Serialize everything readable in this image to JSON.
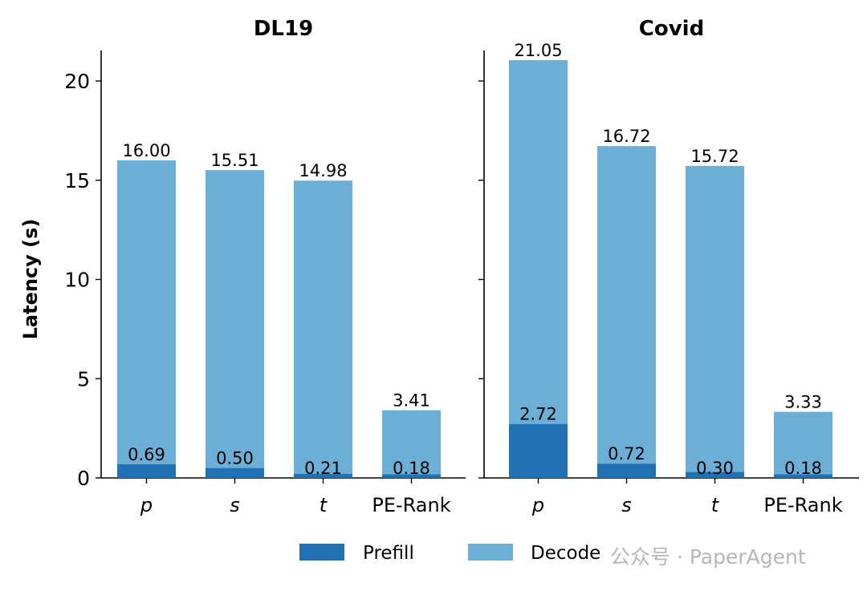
{
  "chart_data": [
    {
      "type": "bar",
      "stacked": true,
      "title": "DL19",
      "ylabel": "Latency (s)",
      "ylim": [
        0,
        21.5
      ],
      "yticks": [
        0,
        5,
        10,
        15,
        20
      ],
      "categories": [
        "p",
        "s",
        "t",
        "PE-Rank"
      ],
      "series": [
        {
          "name": "Prefill",
          "values": [
            0.69,
            0.5,
            0.21,
            0.18
          ]
        },
        {
          "name": "Decode",
          "values": [
            15.31,
            15.01,
            14.77,
            3.23
          ]
        }
      ],
      "total_labels": [
        "16.00",
        "15.51",
        "14.98",
        "3.41"
      ],
      "prefill_labels": [
        "0.69",
        "0.50",
        "0.21",
        "0.18"
      ]
    },
    {
      "type": "bar",
      "stacked": true,
      "title": "Covid",
      "ylim": [
        0,
        21.5
      ],
      "yticks": [
        0,
        5,
        10,
        15,
        20
      ],
      "categories": [
        "p",
        "s",
        "t",
        "PE-Rank"
      ],
      "series": [
        {
          "name": "Prefill",
          "values": [
            2.72,
            0.72,
            0.3,
            0.18
          ]
        },
        {
          "name": "Decode",
          "values": [
            18.33,
            16.0,
            15.42,
            3.15
          ]
        }
      ],
      "total_labels": [
        "21.05",
        "16.72",
        "15.72",
        "3.33"
      ],
      "prefill_labels": [
        "2.72",
        "0.72",
        "0.30",
        "0.18"
      ]
    }
  ],
  "legend": {
    "placement": "bottom",
    "items": [
      {
        "name": "Prefill",
        "color": "#2171b5"
      },
      {
        "name": "Decode",
        "color": "#6baed6"
      }
    ]
  },
  "colors": {
    "prefill": "#2171b5",
    "decode": "#6baed6"
  },
  "watermark": "公众号 · PaperAgent"
}
